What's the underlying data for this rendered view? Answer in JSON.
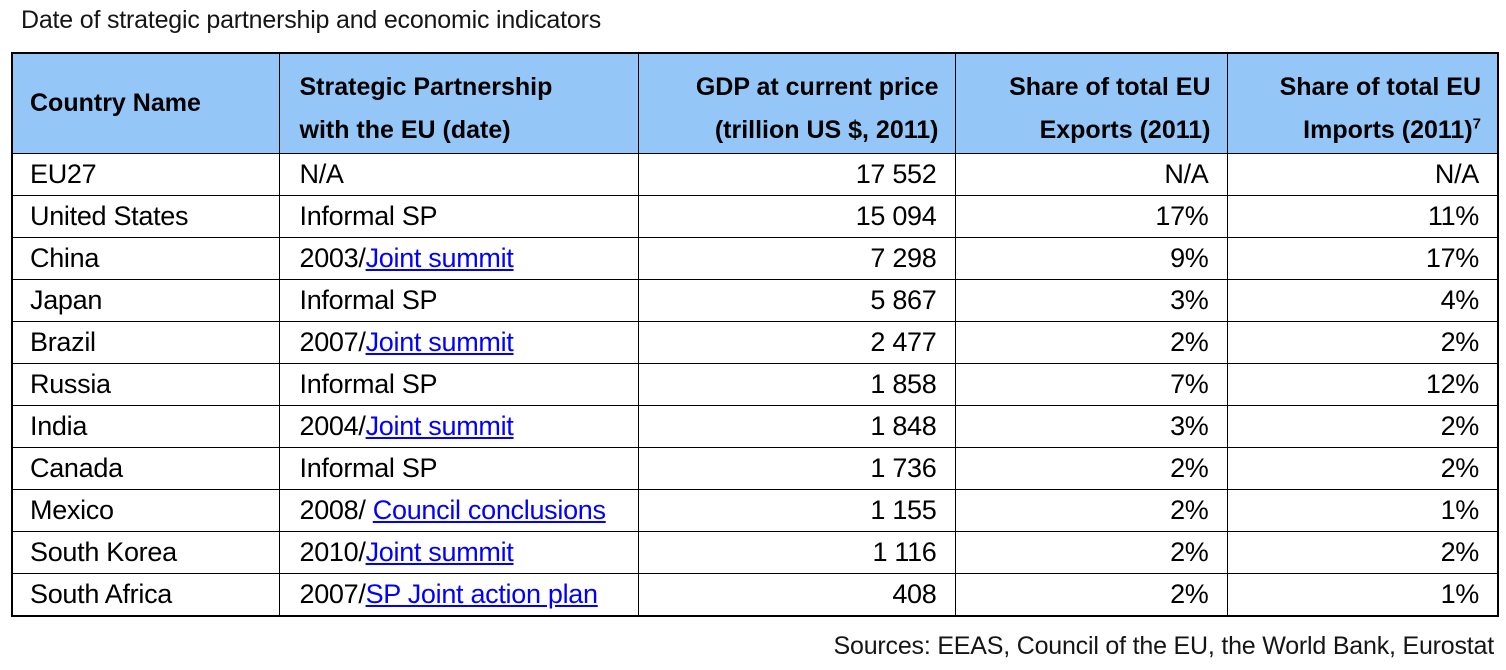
{
  "title": "Date of strategic partnership and economic indicators",
  "footer": "Sources: EEAS, Council of the EU, the World Bank, Eurostat",
  "colors": {
    "header_bg": "#94C7F8",
    "link": "#0000FE",
    "border": "#000000"
  },
  "table": {
    "columns": [
      {
        "id": "country",
        "line1": "Country Name",
        "line2": "",
        "sup": ""
      },
      {
        "id": "partnership",
        "line1": "Strategic Partnership",
        "line2": "with the EU (date)",
        "sup": ""
      },
      {
        "id": "gdp",
        "line1": "GDP at current price",
        "line2": "(trillion US $, 2011)",
        "sup": ""
      },
      {
        "id": "exports",
        "line1": "Share of total EU",
        "line2": "Exports (2011)",
        "sup": ""
      },
      {
        "id": "imports",
        "line1": "Share of total EU",
        "line2": "Imports (2011)",
        "sup": "7"
      }
    ],
    "rows": [
      {
        "country": "EU27",
        "partnership_prefix": "N/A",
        "partnership_link": "",
        "gdp": "17 552",
        "exports": "N/A",
        "imports": "N/A"
      },
      {
        "country": "United States",
        "partnership_prefix": "Informal SP",
        "partnership_link": "",
        "gdp": "15 094",
        "exports": "17%",
        "imports": "11%"
      },
      {
        "country": "China",
        "partnership_prefix": "2003/",
        "partnership_link": "Joint summit",
        "gdp": "7 298",
        "exports": "9%",
        "imports": "17%"
      },
      {
        "country": "Japan",
        "partnership_prefix": "Informal SP",
        "partnership_link": "",
        "gdp": "5 867",
        "exports": "3%",
        "imports": "4%"
      },
      {
        "country": "Brazil",
        "partnership_prefix": "2007/",
        "partnership_link": "Joint summit",
        "gdp": "2 477",
        "exports": "2%",
        "imports": "2%"
      },
      {
        "country": "Russia",
        "partnership_prefix": "Informal SP",
        "partnership_link": "",
        "gdp": "1 858",
        "exports": "7%",
        "imports": "12%"
      },
      {
        "country": "India",
        "partnership_prefix": "2004/",
        "partnership_link": "Joint summit",
        "gdp": "1 848",
        "exports": "3%",
        "imports": "2%"
      },
      {
        "country": "Canada",
        "partnership_prefix": "Informal SP",
        "partnership_link": "",
        "gdp": "1 736",
        "exports": "2%",
        "imports": "2%"
      },
      {
        "country": "Mexico",
        "partnership_prefix": "2008/ ",
        "partnership_link": "Council conclusions",
        "gdp": "1 155",
        "exports": "2%",
        "imports": "1%"
      },
      {
        "country": "South Korea",
        "partnership_prefix": "2010/",
        "partnership_link": "Joint summit",
        "gdp": "1 116",
        "exports": "2%",
        "imports": "2%"
      },
      {
        "country": "South Africa",
        "partnership_prefix": "2007/",
        "partnership_link": "SP Joint action plan",
        "gdp": "408",
        "exports": "2%",
        "imports": "1%"
      }
    ]
  }
}
